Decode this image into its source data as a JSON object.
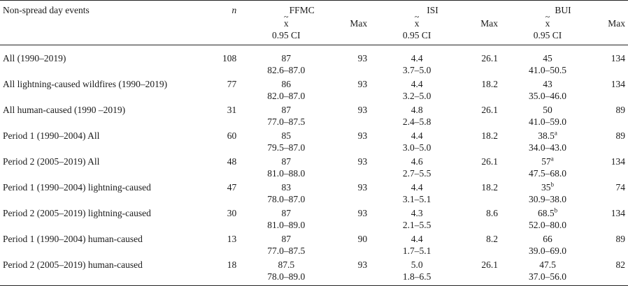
{
  "header": {
    "col_label": "Non-spread day events",
    "col_n": "n",
    "groups": [
      "FFMC",
      "ISI",
      "BUI"
    ],
    "median_symbol": "x",
    "ci_label": "0.95 CI",
    "max_label": "Max"
  },
  "rows": [
    {
      "label": "All (1990–2019)",
      "n": "108",
      "ffmc_med": "87",
      "ffmc_ci": "82.6–87.0",
      "ffmc_max": "93",
      "isi_med": "4.4",
      "isi_ci": "3.7–5.0",
      "isi_max": "26.1",
      "bui_med": "45",
      "bui_sup": "",
      "bui_ci": "41.0–50.5",
      "bui_max": "134"
    },
    {
      "label": "All lightning-caused wildfires (1990–2019)",
      "n": "77",
      "ffmc_med": "86",
      "ffmc_ci": "82.0–87.0",
      "ffmc_max": "93",
      "isi_med": "4.4",
      "isi_ci": "3.2–5.0",
      "isi_max": "18.2",
      "bui_med": "43",
      "bui_sup": "",
      "bui_ci": "35.0–46.0",
      "bui_max": "134"
    },
    {
      "label": "All human-caused (1990 –2019)",
      "n": "31",
      "ffmc_med": "87",
      "ffmc_ci": "77.0–87.5",
      "ffmc_max": "93",
      "isi_med": "4.8",
      "isi_ci": "2.4–5.8",
      "isi_max": "26.1",
      "bui_med": "50",
      "bui_sup": "",
      "bui_ci": "41.0–59.0",
      "bui_max": "89"
    },
    {
      "label": "Period 1 (1990–2004) All",
      "n": "60",
      "ffmc_med": "85",
      "ffmc_ci": "79.5–87.0",
      "ffmc_max": "93",
      "isi_med": "4.4",
      "isi_ci": "3.0–5.0",
      "isi_max": "18.2",
      "bui_med": "38.5",
      "bui_sup": "a",
      "bui_ci": "34.0–43.0",
      "bui_max": "89"
    },
    {
      "label": "Period 2 (2005–2019) All",
      "n": "48",
      "ffmc_med": "87",
      "ffmc_ci": "81.0–88.0",
      "ffmc_max": "93",
      "isi_med": "4.6",
      "isi_ci": "2.7–5.5",
      "isi_max": "26.1",
      "bui_med": "57",
      "bui_sup": "a",
      "bui_ci": "47.5–68.0",
      "bui_max": "134"
    },
    {
      "label": "Period 1 (1990–2004) lightning-caused",
      "n": "47",
      "ffmc_med": "83",
      "ffmc_ci": "78.0–87.0",
      "ffmc_max": "93",
      "isi_med": "4.4",
      "isi_ci": "3.1–5.1",
      "isi_max": "18.2",
      "bui_med": "35",
      "bui_sup": "b",
      "bui_ci": "30.9–38.0",
      "bui_max": "74"
    },
    {
      "label": "Period 2 (2005–2019) lightning-caused",
      "n": "30",
      "ffmc_med": "87",
      "ffmc_ci": "81.0–89.0",
      "ffmc_max": "93",
      "isi_med": "4.3",
      "isi_ci": "2.1–5.5",
      "isi_max": "8.6",
      "bui_med": "68.5",
      "bui_sup": "b",
      "bui_ci": "52.0–80.0",
      "bui_max": "134"
    },
    {
      "label": "Period 1 (1990–2004) human-caused",
      "n": "13",
      "ffmc_med": "87",
      "ffmc_ci": "77.0–87.5",
      "ffmc_max": "90",
      "isi_med": "4.4",
      "isi_ci": "1.7–5.1",
      "isi_max": "8.2",
      "bui_med": "66",
      "bui_sup": "",
      "bui_ci": "39.0–69.0",
      "bui_max": "89"
    },
    {
      "label": "Period 2 (2005–2019) human-caused",
      "n": "18",
      "ffmc_med": "87.5",
      "ffmc_ci": "78.0–89.0",
      "ffmc_max": "93",
      "isi_med": "5.0",
      "isi_ci": "1.8–6.5",
      "isi_max": "26.1",
      "bui_med": "47.5",
      "bui_sup": "",
      "bui_ci": "37.0–56.0",
      "bui_max": "82"
    }
  ]
}
